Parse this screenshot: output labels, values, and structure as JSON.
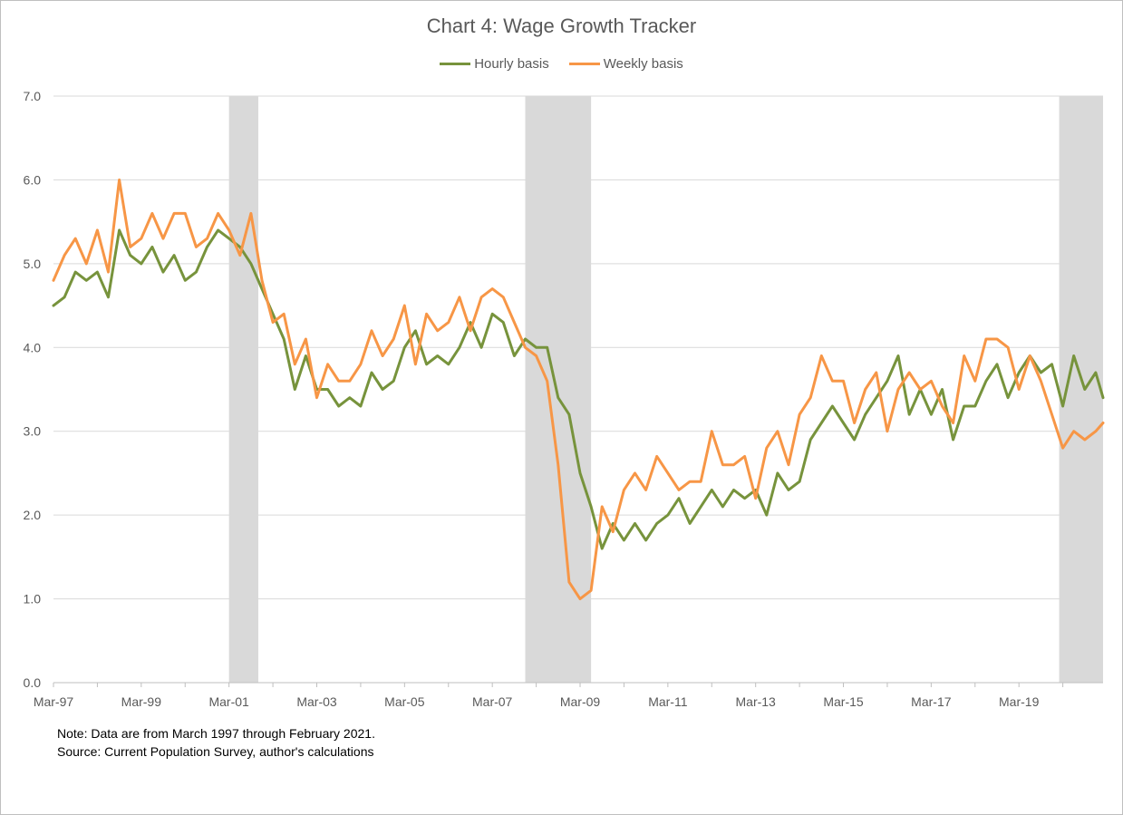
{
  "chart_data": {
    "type": "line",
    "title": "Chart 4: Wage Growth Tracker",
    "xlabel": "",
    "ylabel": "",
    "ylim": [
      0,
      7
    ],
    "y_ticks": [
      "0.0",
      "1.0",
      "2.0",
      "3.0",
      "4.0",
      "5.0",
      "6.0",
      "7.0"
    ],
    "x_range": [
      "1997-03",
      "2021-02"
    ],
    "x_ticks": [
      "Mar-97",
      "Mar-99",
      "Mar-01",
      "Mar-03",
      "Mar-05",
      "Mar-07",
      "Mar-09",
      "Mar-11",
      "Mar-13",
      "Mar-15",
      "Mar-17",
      "Mar-19"
    ],
    "grid": "horizontal",
    "legend_position": "top",
    "recessions": [
      {
        "start": "2001-03",
        "end": "2001-11"
      },
      {
        "start": "2007-12",
        "end": "2009-06"
      },
      {
        "start": "2020-02",
        "end": "2021-02"
      }
    ],
    "series": [
      {
        "name": "Hourly basis",
        "color": "#77933c",
        "points": [
          [
            "1997-03",
            4.5
          ],
          [
            "1997-06",
            4.6
          ],
          [
            "1997-09",
            4.9
          ],
          [
            "1997-12",
            4.8
          ],
          [
            "1998-03",
            4.9
          ],
          [
            "1998-06",
            4.6
          ],
          [
            "1998-09",
            5.4
          ],
          [
            "1998-12",
            5.1
          ],
          [
            "1999-03",
            5.0
          ],
          [
            "1999-06",
            5.2
          ],
          [
            "1999-09",
            4.9
          ],
          [
            "1999-12",
            5.1
          ],
          [
            "2000-03",
            4.8
          ],
          [
            "2000-06",
            4.9
          ],
          [
            "2000-09",
            5.2
          ],
          [
            "2000-12",
            5.4
          ],
          [
            "2001-03",
            5.3
          ],
          [
            "2001-06",
            5.2
          ],
          [
            "2001-09",
            5.0
          ],
          [
            "2001-12",
            4.7
          ],
          [
            "2002-03",
            4.4
          ],
          [
            "2002-06",
            4.1
          ],
          [
            "2002-09",
            3.5
          ],
          [
            "2002-12",
            3.9
          ],
          [
            "2003-03",
            3.5
          ],
          [
            "2003-06",
            3.5
          ],
          [
            "2003-09",
            3.3
          ],
          [
            "2003-12",
            3.4
          ],
          [
            "2004-03",
            3.3
          ],
          [
            "2004-06",
            3.7
          ],
          [
            "2004-09",
            3.5
          ],
          [
            "2004-12",
            3.6
          ],
          [
            "2005-03",
            4.0
          ],
          [
            "2005-06",
            4.2
          ],
          [
            "2005-09",
            3.8
          ],
          [
            "2005-12",
            3.9
          ],
          [
            "2006-03",
            3.8
          ],
          [
            "2006-06",
            4.0
          ],
          [
            "2006-09",
            4.3
          ],
          [
            "2006-12",
            4.0
          ],
          [
            "2007-03",
            4.4
          ],
          [
            "2007-06",
            4.3
          ],
          [
            "2007-09",
            3.9
          ],
          [
            "2007-12",
            4.1
          ],
          [
            "2008-03",
            4.0
          ],
          [
            "2008-06",
            4.0
          ],
          [
            "2008-09",
            3.4
          ],
          [
            "2008-12",
            3.2
          ],
          [
            "2009-03",
            2.5
          ],
          [
            "2009-06",
            2.1
          ],
          [
            "2009-09",
            1.6
          ],
          [
            "2009-12",
            1.9
          ],
          [
            "2010-03",
            1.7
          ],
          [
            "2010-06",
            1.9
          ],
          [
            "2010-09",
            1.7
          ],
          [
            "2010-12",
            1.9
          ],
          [
            "2011-03",
            2.0
          ],
          [
            "2011-06",
            2.2
          ],
          [
            "2011-09",
            1.9
          ],
          [
            "2011-12",
            2.1
          ],
          [
            "2012-03",
            2.3
          ],
          [
            "2012-06",
            2.1
          ],
          [
            "2012-09",
            2.3
          ],
          [
            "2012-12",
            2.2
          ],
          [
            "2013-03",
            2.3
          ],
          [
            "2013-06",
            2.0
          ],
          [
            "2013-09",
            2.5
          ],
          [
            "2013-12",
            2.3
          ],
          [
            "2014-03",
            2.4
          ],
          [
            "2014-06",
            2.9
          ],
          [
            "2014-09",
            3.1
          ],
          [
            "2014-12",
            3.3
          ],
          [
            "2015-03",
            3.1
          ],
          [
            "2015-06",
            2.9
          ],
          [
            "2015-09",
            3.2
          ],
          [
            "2015-12",
            3.4
          ],
          [
            "2016-03",
            3.6
          ],
          [
            "2016-06",
            3.9
          ],
          [
            "2016-09",
            3.2
          ],
          [
            "2016-12",
            3.5
          ],
          [
            "2017-03",
            3.2
          ],
          [
            "2017-06",
            3.5
          ],
          [
            "2017-09",
            2.9
          ],
          [
            "2017-12",
            3.3
          ],
          [
            "2018-03",
            3.3
          ],
          [
            "2018-06",
            3.6
          ],
          [
            "2018-09",
            3.8
          ],
          [
            "2018-12",
            3.4
          ],
          [
            "2019-03",
            3.7
          ],
          [
            "2019-06",
            3.9
          ],
          [
            "2019-09",
            3.7
          ],
          [
            "2019-12",
            3.8
          ],
          [
            "2020-03",
            3.3
          ],
          [
            "2020-06",
            3.9
          ],
          [
            "2020-09",
            3.5
          ],
          [
            "2020-12",
            3.7
          ],
          [
            "2021-02",
            3.4
          ]
        ]
      },
      {
        "name": "Weekly basis",
        "color": "#f79646",
        "points": [
          [
            "1997-03",
            4.8
          ],
          [
            "1997-06",
            5.1
          ],
          [
            "1997-09",
            5.3
          ],
          [
            "1997-12",
            5.0
          ],
          [
            "1998-03",
            5.4
          ],
          [
            "1998-06",
            4.9
          ],
          [
            "1998-09",
            6.0
          ],
          [
            "1998-12",
            5.2
          ],
          [
            "1999-03",
            5.3
          ],
          [
            "1999-06",
            5.6
          ],
          [
            "1999-09",
            5.3
          ],
          [
            "1999-12",
            5.6
          ],
          [
            "2000-03",
            5.6
          ],
          [
            "2000-06",
            5.2
          ],
          [
            "2000-09",
            5.3
          ],
          [
            "2000-12",
            5.6
          ],
          [
            "2001-03",
            5.4
          ],
          [
            "2001-06",
            5.1
          ],
          [
            "2001-09",
            5.6
          ],
          [
            "2001-12",
            4.8
          ],
          [
            "2002-03",
            4.3
          ],
          [
            "2002-06",
            4.4
          ],
          [
            "2002-09",
            3.8
          ],
          [
            "2002-12",
            4.1
          ],
          [
            "2003-03",
            3.4
          ],
          [
            "2003-06",
            3.8
          ],
          [
            "2003-09",
            3.6
          ],
          [
            "2003-12",
            3.6
          ],
          [
            "2004-03",
            3.8
          ],
          [
            "2004-06",
            4.2
          ],
          [
            "2004-09",
            3.9
          ],
          [
            "2004-12",
            4.1
          ],
          [
            "2005-03",
            4.5
          ],
          [
            "2005-06",
            3.8
          ],
          [
            "2005-09",
            4.4
          ],
          [
            "2005-12",
            4.2
          ],
          [
            "2006-03",
            4.3
          ],
          [
            "2006-06",
            4.6
          ],
          [
            "2006-09",
            4.2
          ],
          [
            "2006-12",
            4.6
          ],
          [
            "2007-03",
            4.7
          ],
          [
            "2007-06",
            4.6
          ],
          [
            "2007-09",
            4.3
          ],
          [
            "2007-12",
            4.0
          ],
          [
            "2008-03",
            3.9
          ],
          [
            "2008-06",
            3.6
          ],
          [
            "2008-09",
            2.6
          ],
          [
            "2008-12",
            1.2
          ],
          [
            "2009-03",
            1.0
          ],
          [
            "2009-06",
            1.1
          ],
          [
            "2009-09",
            2.1
          ],
          [
            "2009-12",
            1.8
          ],
          [
            "2010-03",
            2.3
          ],
          [
            "2010-06",
            2.5
          ],
          [
            "2010-09",
            2.3
          ],
          [
            "2010-12",
            2.7
          ],
          [
            "2011-03",
            2.5
          ],
          [
            "2011-06",
            2.3
          ],
          [
            "2011-09",
            2.4
          ],
          [
            "2011-12",
            2.4
          ],
          [
            "2012-03",
            3.0
          ],
          [
            "2012-06",
            2.6
          ],
          [
            "2012-09",
            2.6
          ],
          [
            "2012-12",
            2.7
          ],
          [
            "2013-03",
            2.2
          ],
          [
            "2013-06",
            2.8
          ],
          [
            "2013-09",
            3.0
          ],
          [
            "2013-12",
            2.6
          ],
          [
            "2014-03",
            3.2
          ],
          [
            "2014-06",
            3.4
          ],
          [
            "2014-09",
            3.9
          ],
          [
            "2014-12",
            3.6
          ],
          [
            "2015-03",
            3.6
          ],
          [
            "2015-06",
            3.1
          ],
          [
            "2015-09",
            3.5
          ],
          [
            "2015-12",
            3.7
          ],
          [
            "2016-03",
            3.0
          ],
          [
            "2016-06",
            3.5
          ],
          [
            "2016-09",
            3.7
          ],
          [
            "2016-12",
            3.5
          ],
          [
            "2017-03",
            3.6
          ],
          [
            "2017-06",
            3.3
          ],
          [
            "2017-09",
            3.1
          ],
          [
            "2017-12",
            3.9
          ],
          [
            "2018-03",
            3.6
          ],
          [
            "2018-06",
            4.1
          ],
          [
            "2018-09",
            4.1
          ],
          [
            "2018-12",
            4.0
          ],
          [
            "2019-03",
            3.5
          ],
          [
            "2019-06",
            3.9
          ],
          [
            "2019-09",
            3.6
          ],
          [
            "2019-12",
            3.2
          ],
          [
            "2020-03",
            2.8
          ],
          [
            "2020-06",
            3.0
          ],
          [
            "2020-09",
            2.9
          ],
          [
            "2020-12",
            3.0
          ],
          [
            "2021-02",
            3.1
          ]
        ]
      }
    ]
  },
  "notes": {
    "line1": "Note: Data are from March 1997 through February 2021.",
    "line2": "Source: Current Population Survey, author's calculations"
  }
}
